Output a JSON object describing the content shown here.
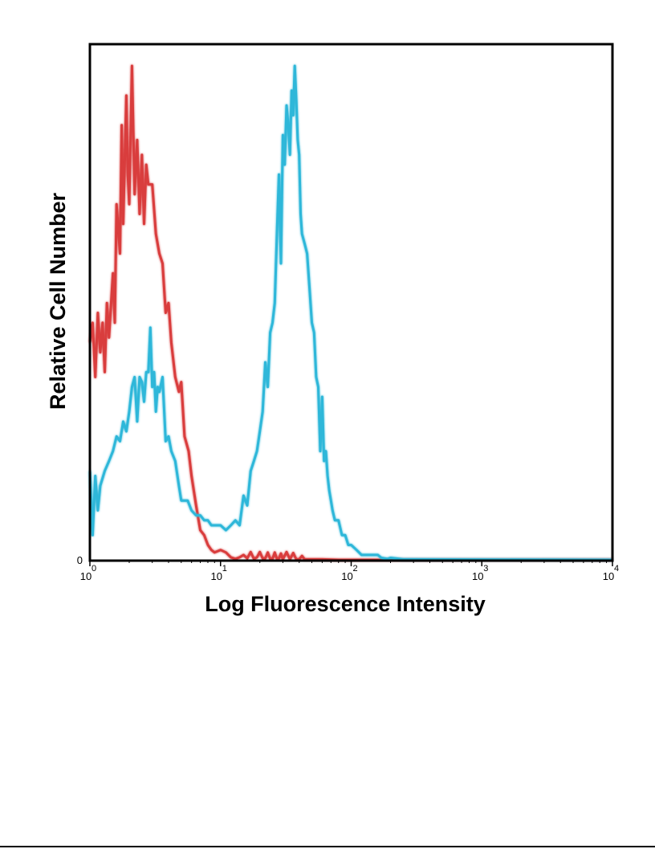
{
  "chart_data": {
    "type": "line",
    "title": "",
    "xlabel": "Log Fluorescence Intensity",
    "ylabel": "Relative Cell Number",
    "x_scale": "log",
    "xlim": [
      1,
      10000
    ],
    "ylim": [
      0,
      100
    ],
    "grid": false,
    "legend": "none",
    "y_ticks": [
      {
        "value": 0,
        "label": "0"
      }
    ],
    "x_ticks": [
      {
        "value": 1,
        "base": "10",
        "exp": "0"
      },
      {
        "value": 10,
        "base": "10",
        "exp": "1"
      },
      {
        "value": 100,
        "base": "10",
        "exp": "2"
      },
      {
        "value": 1000,
        "base": "10",
        "exp": "3"
      },
      {
        "value": 10000,
        "base": "10",
        "exp": "4"
      }
    ],
    "series": [
      {
        "color": "#d93c3c",
        "x": [
          1.0,
          1.05,
          1.1,
          1.15,
          1.2,
          1.25,
          1.3,
          1.35,
          1.4,
          1.5,
          1.55,
          1.6,
          1.7,
          1.75,
          1.8,
          1.9,
          1.95,
          2.0,
          2.1,
          2.2,
          2.3,
          2.4,
          2.5,
          2.6,
          2.7,
          2.8,
          3.0,
          3.2,
          3.4,
          3.6,
          3.8,
          4.0,
          4.2,
          4.5,
          4.8,
          5.0,
          5.3,
          5.7,
          6.0,
          6.5,
          7.0,
          7.5,
          8.0,
          8.5,
          9.0,
          10.0,
          11.0,
          12.0,
          13.0,
          14.0,
          15.0,
          16.0,
          17.0,
          18.0,
          19.0,
          20.0,
          21.0,
          22.0,
          23.0,
          24.0,
          25.0,
          26.0,
          27.0,
          28.0,
          29.0,
          30.0,
          32.0,
          34.0,
          36.0,
          38.0,
          40.0,
          42.0,
          44.0,
          46.0,
          50.0,
          60.0,
          80.0,
          100.0,
          150.0,
          300.0,
          10000.0
        ],
        "y": [
          44,
          48,
          37,
          50,
          42,
          48,
          38,
          52,
          45,
          58,
          48,
          72,
          62,
          88,
          68,
          94,
          78,
          72,
          100,
          74,
          85,
          70,
          82,
          68,
          80,
          76,
          76,
          66,
          62,
          60,
          50,
          52,
          44,
          37,
          34,
          36,
          25,
          22,
          17,
          11,
          6,
          5,
          3,
          2,
          1.5,
          2,
          1.5,
          0.5,
          0.2,
          0.5,
          1,
          0.3,
          1.6,
          0.2,
          0.5,
          1.6,
          0.3,
          0.3,
          1.5,
          0.2,
          0.2,
          1.5,
          0.2,
          0.3,
          1.3,
          0.1,
          1.6,
          0.1,
          1.4,
          0.1,
          0.1,
          0.8,
          0.1,
          0.1,
          0.1,
          0.1,
          0,
          0,
          0,
          0,
          0
        ]
      },
      {
        "color": "#2fb7d9",
        "x": [
          1.0,
          1.05,
          1.1,
          1.15,
          1.2,
          1.3,
          1.4,
          1.5,
          1.6,
          1.7,
          1.8,
          1.9,
          2.0,
          2.1,
          2.2,
          2.3,
          2.4,
          2.5,
          2.6,
          2.7,
          2.8,
          2.9,
          3.0,
          3.1,
          3.2,
          3.3,
          3.4,
          3.6,
          3.8,
          4.0,
          4.2,
          4.5,
          4.8,
          5.0,
          5.3,
          5.6,
          6.0,
          6.5,
          7.0,
          7.5,
          8.0,
          8.5,
          9.0,
          9.5,
          10.0,
          11.0,
          12.0,
          13.0,
          14.0,
          15.0,
          16.0,
          17.0,
          18.0,
          19.0,
          20.0,
          21.0,
          22.0,
          23.0,
          24.0,
          25.0,
          26.0,
          27.0,
          28.0,
          29.0,
          30.0,
          31.0,
          32.0,
          33.0,
          34.0,
          35.0,
          36.0,
          37.0,
          38.0,
          39.0,
          40.0,
          41.0,
          42.0,
          44.0,
          46.0,
          48.0,
          50.0,
          52.0,
          54.0,
          56.0,
          58.0,
          60.0,
          62.0,
          64.0,
          66.0,
          68.0,
          70.0,
          72.0,
          75.0,
          80.0,
          85.0,
          90.0,
          95.0,
          100.0,
          110.0,
          120.0,
          130.0,
          140.0,
          150.0,
          160.0,
          170.0,
          180.0,
          190.0,
          200.0,
          250.0,
          300.0,
          10000.0
        ],
        "y": [
          18,
          5,
          17,
          10,
          15,
          18,
          20,
          22,
          25,
          24,
          28,
          26,
          30,
          35,
          37,
          28,
          37,
          36,
          32,
          38,
          38,
          47,
          35,
          38,
          30,
          35,
          34,
          37,
          24,
          25,
          22,
          20,
          15,
          12,
          12,
          12,
          10,
          9,
          9,
          8,
          8,
          7,
          7,
          7,
          7,
          6,
          7,
          8,
          7,
          13,
          11,
          18,
          20,
          22,
          26,
          30,
          40,
          35,
          46,
          48,
          52,
          66,
          78,
          60,
          86,
          80,
          92,
          88,
          82,
          95,
          90,
          100,
          93,
          85,
          82,
          70,
          66,
          64,
          62,
          55,
          48,
          46,
          37,
          35,
          22,
          33,
          20,
          22,
          17,
          14,
          12,
          10,
          8,
          8,
          5,
          5,
          3,
          3,
          2,
          1,
          1,
          1,
          1,
          1,
          0.4,
          0.3,
          0.2,
          0.4,
          0.1,
          0.1,
          0
        ]
      }
    ]
  }
}
